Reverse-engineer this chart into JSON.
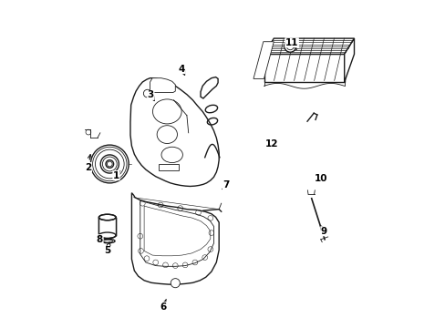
{
  "background_color": "#ffffff",
  "line_color": "#1a1a1a",
  "text_color": "#000000",
  "figure_width": 4.89,
  "figure_height": 3.6,
  "dpi": 100,
  "label_fs": 7.5,
  "lw_main": 1.0,
  "lw_detail": 0.6,
  "labels": [
    {
      "text": "1",
      "xt": 0.175,
      "yt": 0.465,
      "xa": 0.188,
      "ya": 0.48
    },
    {
      "text": "2",
      "xt": 0.09,
      "yt": 0.49,
      "xa": 0.098,
      "ya": 0.54
    },
    {
      "text": "3",
      "xt": 0.28,
      "yt": 0.71,
      "xa": 0.293,
      "ya": 0.69
    },
    {
      "text": "4",
      "xt": 0.375,
      "yt": 0.79,
      "xa": 0.385,
      "ya": 0.768
    },
    {
      "text": "5",
      "xt": 0.148,
      "yt": 0.235,
      "xa": 0.155,
      "ya": 0.265
    },
    {
      "text": "6",
      "xt": 0.318,
      "yt": 0.065,
      "xa": 0.33,
      "ya": 0.095
    },
    {
      "text": "7",
      "xt": 0.51,
      "yt": 0.435,
      "xa": 0.497,
      "ya": 0.422
    },
    {
      "text": "8",
      "xt": 0.125,
      "yt": 0.27,
      "xa": 0.14,
      "ya": 0.258
    },
    {
      "text": "9",
      "xt": 0.808,
      "yt": 0.295,
      "xa": 0.795,
      "ya": 0.315
    },
    {
      "text": "10",
      "xt": 0.798,
      "yt": 0.455,
      "xa": 0.778,
      "ya": 0.455
    },
    {
      "text": "11",
      "xt": 0.71,
      "yt": 0.87,
      "xa": 0.725,
      "ya": 0.848
    },
    {
      "text": "12",
      "xt": 0.65,
      "yt": 0.56,
      "xa": 0.658,
      "ya": 0.575
    }
  ]
}
